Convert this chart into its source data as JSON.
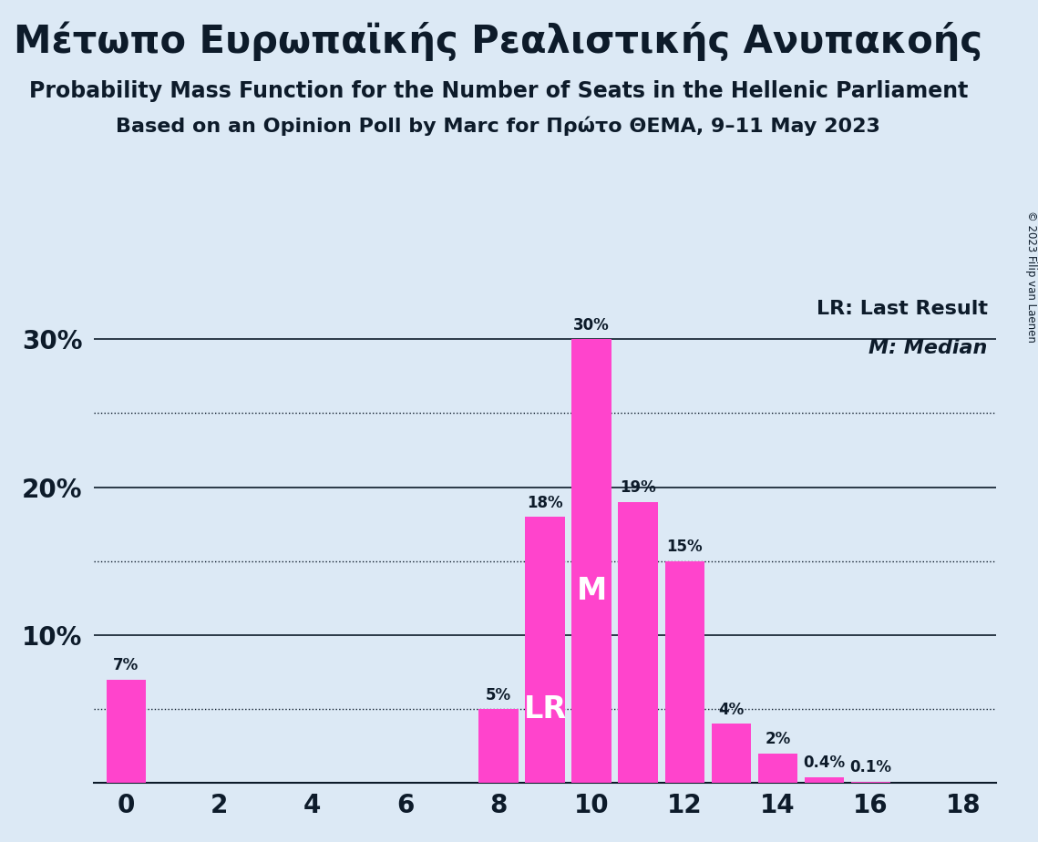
{
  "title": "Μέτωπο Ευρωπαϊκής Ρεαλιστικής Ανυπακοής",
  "subtitle1": "Probability Mass Function for the Number of Seats in the Hellenic Parliament",
  "subtitle2": "Based on an Opinion Poll by Marc for Πρώτο ΘΕΜΑ, 9–11 May 2023",
  "copyright": "© 2023 Filip van Laenen",
  "x_values": [
    0,
    1,
    2,
    3,
    4,
    5,
    6,
    7,
    8,
    9,
    10,
    11,
    12,
    13,
    14,
    15,
    16,
    17,
    18
  ],
  "y_values": [
    7,
    0,
    0,
    0,
    0,
    0,
    0,
    0,
    5,
    18,
    30,
    19,
    15,
    4,
    2,
    0.4,
    0.1,
    0,
    0
  ],
  "bar_color": "#ff44cc",
  "background_color": "#dce9f5",
  "text_color": "#0d1b2a",
  "ylabel_solid": [
    10,
    20,
    30
  ],
  "ylabel_dotted": [
    5,
    15,
    25
  ],
  "xlim": [
    -0.7,
    18.7
  ],
  "ylim": [
    0,
    33
  ],
  "lr_bar_index": 9,
  "median_bar_index": 10,
  "legend_lr": "LR: Last Result",
  "legend_m": "M: Median",
  "ytick_labels": [
    "10%",
    "20%",
    "30%"
  ],
  "ytick_values": [
    10,
    20,
    30
  ],
  "bar_width": 0.85
}
